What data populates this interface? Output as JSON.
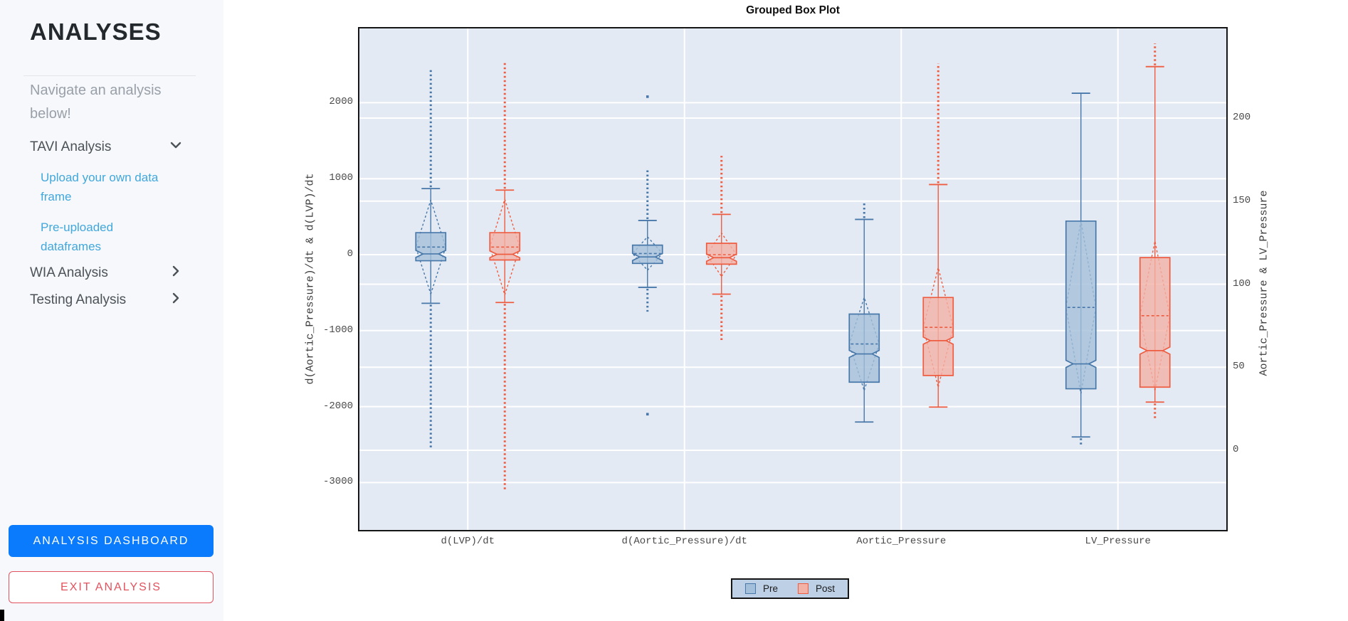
{
  "sidebar": {
    "title": "ANALYSES",
    "subtitle": "Navigate an analysis below!",
    "nav": [
      {
        "label": "TAVI Analysis",
        "state": "expanded",
        "children": [
          "Upload your own data frame",
          "Pre-uploaded dataframes"
        ]
      },
      {
        "label": "WIA Analysis",
        "state": "collapsed"
      },
      {
        "label": "Testing Analysis",
        "state": "collapsed"
      }
    ],
    "dashboard_button": "ANALYSIS DASHBOARD",
    "exit_button": "EXIT ANALYSIS",
    "colors": {
      "accent_blue": "#0b7bfd",
      "accent_red": "#e2525f",
      "link_blue": "#41a7dc"
    }
  },
  "chart_data": {
    "type": "grouped_box",
    "title": "Grouped Box Plot",
    "categories": [
      "d(LVP)/dt",
      "d(Aortic_Pressure)/dt",
      "Aortic_Pressure",
      "LV_Pressure"
    ],
    "series_names": [
      "Pre",
      "Post"
    ],
    "colors": {
      "pre_fill": "#a4bfd9",
      "pre_stroke": "#4878aa",
      "post_fill": "#f3b2a6",
      "post_stroke": "#ee5d41",
      "plot_bg": "#e4eaf3",
      "grid": "#ffffff"
    },
    "axes": {
      "left": {
        "label": "d(Aortic_Pressure)/dt & d(LVP)/dt",
        "ticks": [
          2000,
          1000,
          0,
          -1000,
          -2000,
          -3000
        ],
        "min": -3624,
        "max": 2978
      },
      "right": {
        "label": "Aortic_Pressure & LV_Pressure",
        "ticks": [
          200,
          150,
          100,
          50,
          0
        ],
        "min": -48,
        "max": 254
      }
    },
    "legend": {
      "position": "bottom",
      "entries": [
        "Pre",
        "Post"
      ]
    },
    "boxes": [
      {
        "category": "d(LVP)/dt",
        "series": "Pre",
        "axis": "left",
        "whisker_low": -640,
        "q1": -80,
        "median": 10,
        "q3": 290,
        "whisker_high": 870,
        "mean": 100,
        "sd": 620,
        "outlier_high": 2450,
        "outlier_low": -2550
      },
      {
        "category": "d(LVP)/dt",
        "series": "Post",
        "axis": "left",
        "whisker_low": -630,
        "q1": -70,
        "median": 5,
        "q3": 290,
        "whisker_high": 850,
        "mean": 100,
        "sd": 630,
        "outlier_high": 2550,
        "outlier_low": -3100
      },
      {
        "category": "d(Aortic_Pressure)/dt",
        "series": "Pre",
        "axis": "left",
        "whisker_low": -430,
        "q1": -115,
        "median": -30,
        "q3": 125,
        "whisker_high": 450,
        "mean": 15,
        "sd": 220,
        "outlier_high": 1120,
        "outlier_low": -750,
        "lone_points": [
          2080,
          -2100
        ]
      },
      {
        "category": "d(Aortic_Pressure)/dt",
        "series": "Post",
        "axis": "left",
        "whisker_low": -520,
        "q1": -125,
        "median": -40,
        "q3": 150,
        "whisker_high": 530,
        "mean": 0,
        "sd": 285,
        "outlier_high": 1300,
        "outlier_low": -1150
      },
      {
        "category": "Aortic_Pressure",
        "series": "Pre",
        "axis": "right",
        "whisker_low": 17,
        "q1": 41,
        "median": 58,
        "q3": 82,
        "whisker_high": 139,
        "mean": 64,
        "sd": 28,
        "outlier_high": 150
      },
      {
        "category": "Aortic_Pressure",
        "series": "Post",
        "axis": "right",
        "whisker_low": 26,
        "q1": 45,
        "median": 66,
        "q3": 92,
        "whisker_high": 160,
        "mean": 74,
        "sd": 36,
        "outlier_high": 233
      },
      {
        "category": "LV_Pressure",
        "series": "Pre",
        "axis": "right",
        "whisker_low": 8,
        "q1": 37,
        "median": 52,
        "q3": 138,
        "whisker_high": 215,
        "mean": 86,
        "sd": 52,
        "outlier_low": 3
      },
      {
        "category": "LV_Pressure",
        "series": "Post",
        "axis": "right",
        "whisker_low": 29,
        "q1": 38,
        "median": 60,
        "q3": 116,
        "whisker_high": 231,
        "mean": 81,
        "sd": 45,
        "outlier_high": 245,
        "outlier_low": 18
      }
    ]
  }
}
